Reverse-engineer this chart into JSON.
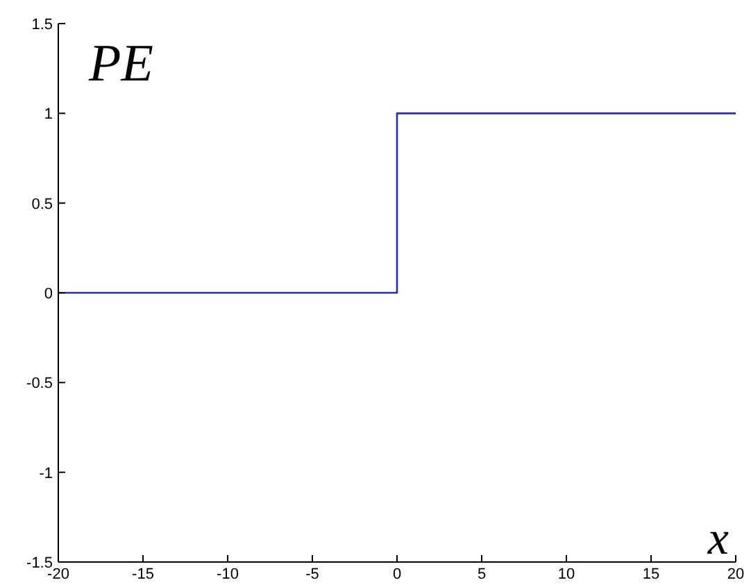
{
  "chart_data": {
    "type": "step",
    "xlabel": "x",
    "ylabel": "PE",
    "x": [
      -20,
      0,
      20
    ],
    "series": [
      {
        "color": "#2a2ab4",
        "values": [
          0,
          1,
          1
        ]
      }
    ],
    "xlim": [
      -20,
      20
    ],
    "xticks": [
      -20,
      -15,
      -10,
      -5,
      0,
      5,
      10,
      15,
      20
    ],
    "ylim": [
      -1.5,
      1.5
    ],
    "yticks": [
      -1.5,
      -1,
      -0.5,
      0,
      0.5,
      1,
      1.5
    ],
    "grid": false
  }
}
